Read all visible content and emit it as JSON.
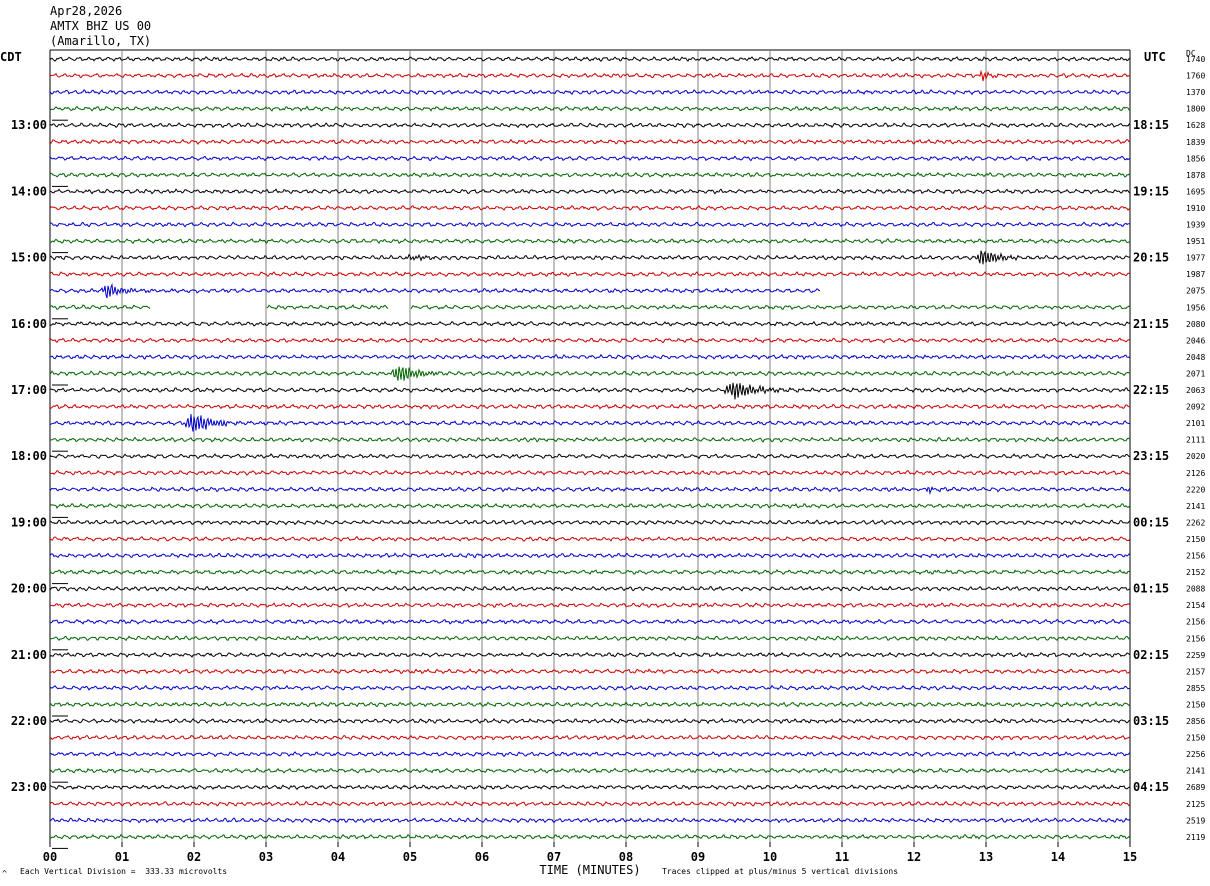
{
  "header": {
    "date": "Apr28,2026",
    "station": "AMTX BHZ US 00",
    "location": "(Amarillo, TX)"
  },
  "left_tz": "CDT",
  "right_tz": "UTC",
  "dc_label": "DC",
  "footer": {
    "scale_note": "Each Vertical Division =  333.33 microvolts",
    "clip_note": "Traces clipped at plus/minus 5 vertical divisions",
    "corner_mark": "^"
  },
  "colors": {
    "trace_cycle": [
      "#000000",
      "#cc0000",
      "#0000cc",
      "#006600"
    ],
    "grid": "#808080"
  },
  "chart_data": {
    "type": "line",
    "title": "",
    "xlabel": "TIME (MINUTES)",
    "xlim": [
      0,
      15
    ],
    "x_ticks": [
      "00",
      "01",
      "02",
      "03",
      "04",
      "05",
      "06",
      "07",
      "08",
      "09",
      "10",
      "11",
      "12",
      "13",
      "14",
      "15"
    ],
    "left_hour_labels": [
      "13:00",
      "14:00",
      "15:00",
      "16:00",
      "17:00",
      "18:00",
      "19:00",
      "20:00",
      "21:00",
      "22:00",
      "23:00"
    ],
    "right_hour_labels": [
      "18:15",
      "19:15",
      "20:15",
      "21:15",
      "22:15",
      "23:15",
      "00:15",
      "01:15",
      "02:15",
      "03:15",
      "04:15"
    ],
    "trace_count": 48,
    "dc_values": [
      "1740",
      "1760",
      "1370",
      "1800",
      "1628",
      "1839",
      "1856",
      "1878",
      "1695",
      "1910",
      "1939",
      "1951",
      "1977",
      "1987",
      "2075",
      "1956",
      "2080",
      "2046",
      "2048",
      "2071",
      "2063",
      "2092",
      "2101",
      "2111",
      "2020",
      "2126",
      "2220",
      "2141",
      "2262",
      "2150",
      "2156",
      "2152",
      "2088",
      "2154",
      "2156",
      "2156",
      "2259",
      "2157",
      "2855",
      "2150",
      "2856",
      "2150",
      "2256",
      "2141",
      "2689",
      "2125",
      "2519",
      "2119"
    ],
    "events": [
      {
        "trace": 1,
        "minute": 12.95,
        "amplitude": 5,
        "width_min": 0.2
      },
      {
        "trace": 12,
        "minute": 5.05,
        "amplitude": 3,
        "width_min": 0.35
      },
      {
        "trace": 12,
        "minute": 12.95,
        "amplitude": 10,
        "width_min": 0.3
      },
      {
        "trace": 14,
        "minute": 0.8,
        "amplitude": 9,
        "width_min": 0.25
      },
      {
        "trace": 19,
        "minute": 4.85,
        "amplitude": 10,
        "width_min": 0.35
      },
      {
        "trace": 20,
        "minute": 9.5,
        "amplitude": 11,
        "width_min": 0.4
      },
      {
        "trace": 22,
        "minute": 1.98,
        "amplitude": 12,
        "width_min": 0.35
      },
      {
        "trace": 26,
        "minute": 12.2,
        "amplitude": 4,
        "width_min": 0.12
      }
    ],
    "gaps": [
      {
        "trace": 14,
        "from_minute": 10.7,
        "to_minute": 15
      },
      {
        "trace": 15,
        "from_minute": 1.4,
        "to_minute": 3.0
      },
      {
        "trace": 15,
        "from_minute": 4.7,
        "to_minute": 5.0
      }
    ]
  }
}
